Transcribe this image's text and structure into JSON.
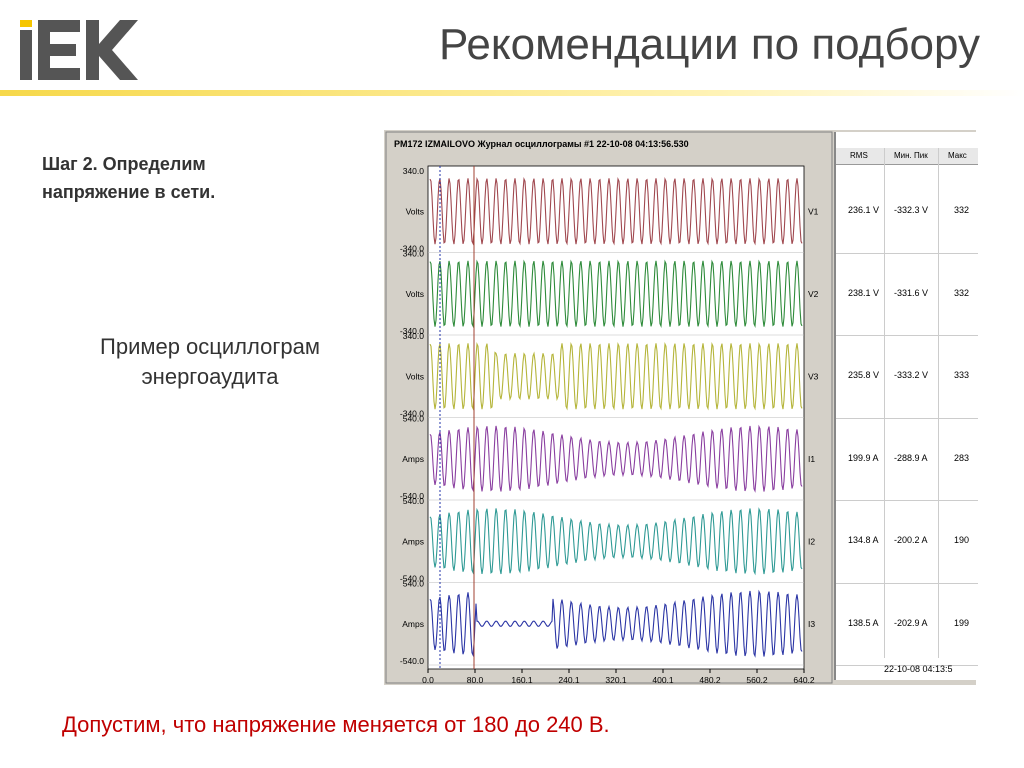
{
  "logo": {
    "text": "IEK"
  },
  "title": "Рекомендации по подбору",
  "step_text": [
    "Шаг 2. Определим",
    "напряжение в сети."
  ],
  "example_text": [
    "Пример осциллограм",
    "энергоаудита"
  ],
  "bottom_text": "Допустим, что напряжение меняется от 180 до 240  В.",
  "colors": {
    "title": "#444444",
    "accent_rule": "#f6d84a",
    "bottom_text": "#c00000"
  },
  "scope": {
    "header": "PM172 IZMAILOVO  Журнал осциллограмы #1   22-10-08  04:13:56.530",
    "x_ticks": [
      "0.0",
      "80.0",
      "160.1",
      "240.1",
      "320.1",
      "400.1",
      "480.2",
      "560.2",
      "640.2"
    ],
    "channels": [
      {
        "name": "V1",
        "unit": "Volts",
        "top": "340.0",
        "bottom": "-340.0",
        "color": "#a0484f"
      },
      {
        "name": "V2",
        "unit": "Volts",
        "top": "340.0",
        "bottom": "-340.0",
        "color": "#2e8b3a"
      },
      {
        "name": "V3",
        "unit": "Volts",
        "top": "340.0",
        "bottom": "-340.0",
        "color": "#b5b53a"
      },
      {
        "name": "I1",
        "unit": "Amps",
        "top": "540.0",
        "bottom": "-540.0",
        "color": "#8a3fa0"
      },
      {
        "name": "I2",
        "unit": "Amps",
        "top": "540.0",
        "bottom": "-540.0",
        "color": "#2f9a95"
      },
      {
        "name": "I3",
        "unit": "Amps",
        "top": "540.0",
        "bottom": "-540.0",
        "color": "#2b35a5"
      }
    ],
    "table": {
      "headers": [
        "RMS",
        "Мин. Пик",
        "Макс"
      ],
      "rows": [
        [
          "236.1 V",
          "-332.3 V",
          "332"
        ],
        [
          "238.1 V",
          "-331.6 V",
          "332"
        ],
        [
          "235.8 V",
          "-333.2 V",
          "333"
        ],
        [
          "199.9 A",
          "-288.9 A",
          "283"
        ],
        [
          "134.8 A",
          "-200.2 A",
          "190"
        ],
        [
          "138.5 A",
          "-202.9 A",
          "199"
        ]
      ],
      "footer": "22-10-08  04:13:5"
    }
  }
}
